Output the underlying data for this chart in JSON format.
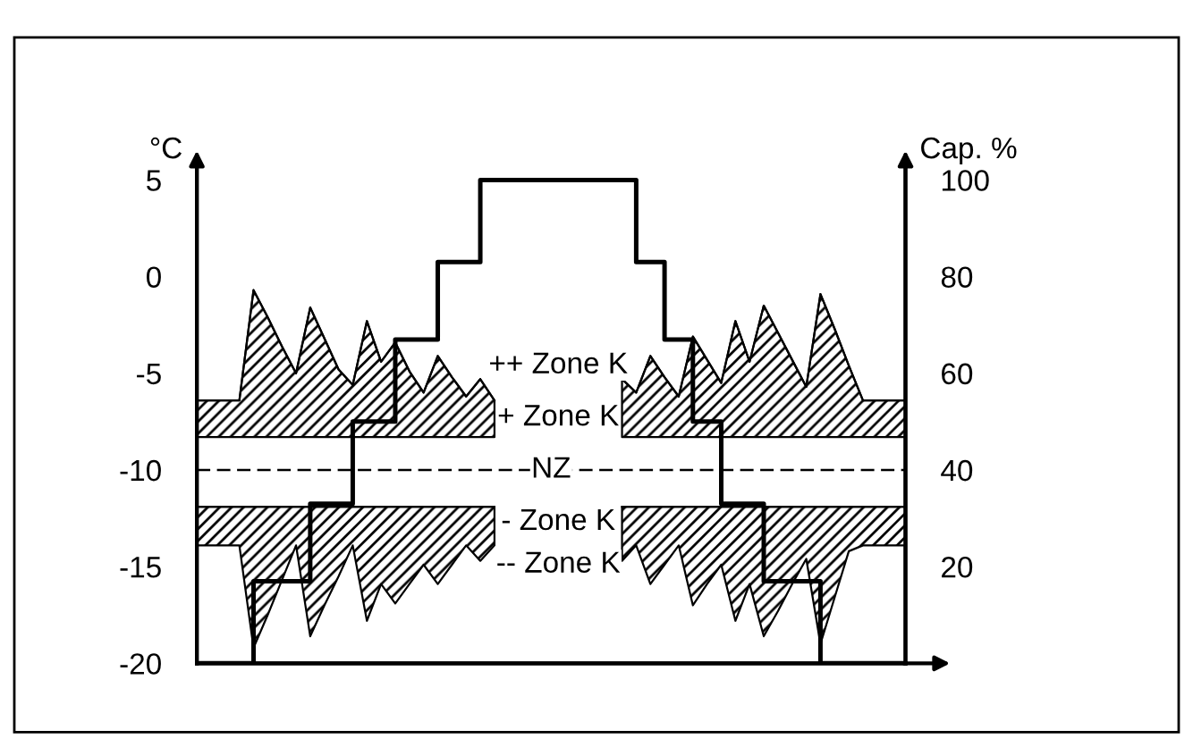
{
  "chart_data": {
    "type": "line",
    "ylabel": "°C",
    "y2label": "Cap. %",
    "categories": [
      null,
      null,
      null,
      null,
      null,
      null,
      null,
      null,
      null,
      null,
      null,
      null,
      null,
      null,
      null,
      null,
      null,
      null,
      null,
      null,
      null,
      null,
      null,
      null,
      null,
      null,
      null,
      null,
      null,
      null,
      null,
      null,
      null,
      null,
      null,
      null,
      null,
      null,
      null,
      null,
      null,
      null,
      null,
      null,
      null,
      null,
      null,
      null,
      null,
      null,
      null
    ],
    "ylim": [
      -20,
      6
    ],
    "yticks": [
      -20,
      -15,
      -10,
      -5,
      0,
      5
    ],
    "y2lim": [
      0,
      104
    ],
    "y2ticks": [
      20,
      40,
      60,
      80,
      100
    ],
    "grid": false,
    "legend": false,
    "marker": "none",
    "ref_lines": [
      {
        "axis": "y",
        "value": -10,
        "label": "NZ",
        "line_style": "dashed",
        "color": "#000000"
      }
    ],
    "annotations": [
      "++ Zone K",
      "+ Zone K",
      "- Zone K",
      "-- Zone K"
    ],
    "series": [
      {
        "color": "#000000",
        "values": [
          -6.4,
          -6.4,
          -6.4,
          -6.4,
          -0.7,
          -2.1,
          -3.6,
          -5.0,
          -1.6,
          -3.2,
          -4.8,
          -5.6,
          -2.3,
          -4.4,
          -3.4,
          -4.9,
          -6.0,
          -4.1,
          -5.2,
          -6.2,
          -5.3,
          -6.4,
          null,
          null,
          null,
          null,
          null,
          null,
          null,
          null,
          -5.3,
          -6.0,
          -4.1,
          -5.2,
          -6.2,
          -3.1,
          -4.3,
          -5.5,
          -2.3,
          -4.4,
          -1.5,
          -2.9,
          -4.3,
          -5.7,
          -0.9,
          -2.7,
          -4.6,
          -6.4,
          -6.4,
          -6.4,
          -6.4
        ],
        "upper": [
          -6.4,
          -6.4,
          -6.4,
          -6.4,
          -0.7,
          -2.1,
          -3.6,
          -5.0,
          -1.6,
          -3.2,
          -4.8,
          -5.6,
          -2.3,
          -4.4,
          -3.4,
          -4.9,
          -6.0,
          -4.1,
          -5.2,
          -6.2,
          -5.3,
          -6.4,
          null,
          null,
          null,
          null,
          null,
          null,
          null,
          null,
          -5.3,
          -6.0,
          -4.1,
          -5.2,
          -6.2,
          -3.1,
          -4.3,
          -5.5,
          -2.3,
          -4.4,
          -1.5,
          -2.9,
          -4.3,
          -5.7,
          -0.9,
          -2.7,
          -4.6,
          -6.4,
          -6.4,
          -6.4,
          -6.4
        ],
        "lower": [
          -8.3,
          -8.3,
          -8.3,
          -8.3,
          -8.3,
          -8.3,
          -8.3,
          -8.3,
          -8.3,
          -8.3,
          -8.3,
          -8.3,
          -8.3,
          -8.3,
          -8.3,
          -8.3,
          -8.3,
          -8.3,
          -8.3,
          -8.3,
          -8.3,
          -8.3,
          null,
          null,
          null,
          null,
          null,
          null,
          null,
          null,
          -8.3,
          -8.3,
          -8.3,
          -8.3,
          -8.3,
          -8.3,
          -8.3,
          -8.3,
          -8.3,
          -8.3,
          -8.3,
          -8.3,
          -8.3,
          -8.3,
          -8.3,
          -8.3,
          -8.3,
          -8.3,
          -8.3,
          -8.3,
          -8.3
        ]
      },
      {
        "color": "#000000",
        "values": [
          -11.9,
          -11.9,
          -11.9,
          -11.9,
          -11.9,
          -11.9,
          -11.9,
          -11.9,
          -11.9,
          -11.9,
          -11.9,
          -11.9,
          -11.9,
          -11.9,
          -11.9,
          -11.9,
          -11.9,
          -11.9,
          -11.9,
          -11.9,
          -11.9,
          -11.9,
          null,
          null,
          null,
          null,
          null,
          null,
          null,
          null,
          -11.9,
          -11.9,
          -11.9,
          -11.9,
          -11.9,
          -11.9,
          -11.9,
          -11.9,
          -11.9,
          -11.9,
          -11.9,
          -11.9,
          -11.9,
          -11.9,
          -11.9,
          -11.9,
          -11.9,
          -11.9,
          -11.9,
          -11.9,
          -11.9
        ],
        "upper": [
          -11.9,
          -11.9,
          -11.9,
          -11.9,
          -11.9,
          -11.9,
          -11.9,
          -11.9,
          -11.9,
          -11.9,
          -11.9,
          -11.9,
          -11.9,
          -11.9,
          -11.9,
          -11.9,
          -11.9,
          -11.9,
          -11.9,
          -11.9,
          -11.9,
          -11.9,
          null,
          null,
          null,
          null,
          null,
          null,
          null,
          null,
          -11.9,
          -11.9,
          -11.9,
          -11.9,
          -11.9,
          -11.9,
          -11.9,
          -11.9,
          -11.9,
          -11.9,
          -11.9,
          -11.9,
          -11.9,
          -11.9,
          -11.9,
          -11.9,
          -11.9,
          -11.9,
          -11.9,
          -11.9,
          -11.9
        ],
        "lower": [
          -13.9,
          -13.9,
          -13.9,
          -13.9,
          -19.2,
          -17.5,
          -15.7,
          -13.9,
          -18.6,
          -17.0,
          -15.5,
          -13.9,
          -17.8,
          -15.9,
          -16.9,
          -15.9,
          -14.9,
          -15.9,
          -14.9,
          -13.9,
          -14.7,
          -13.9,
          null,
          null,
          null,
          null,
          null,
          null,
          null,
          null,
          -14.7,
          -13.9,
          -15.9,
          -14.9,
          -13.9,
          -17.0,
          -15.9,
          -14.9,
          -17.8,
          -15.9,
          -18.6,
          -17.3,
          -15.9,
          -14.6,
          -19.0,
          -16.6,
          -14.2,
          -13.9,
          -13.9,
          -13.9,
          -13.9
        ]
      },
      {
        "type": "step",
        "axis": "y2",
        "color": "#000000",
        "values": [
          0,
          0,
          0,
          0,
          17,
          17,
          17,
          17,
          33,
          33,
          33,
          50,
          50,
          50,
          67,
          67,
          67,
          83,
          83,
          83,
          100,
          100,
          100,
          100,
          100,
          100,
          100,
          100,
          100,
          100,
          100,
          83,
          83,
          67,
          67,
          50,
          50,
          33,
          33,
          33,
          17,
          17,
          17,
          17,
          0,
          0,
          0,
          0,
          0,
          0,
          0
        ]
      }
    ]
  }
}
